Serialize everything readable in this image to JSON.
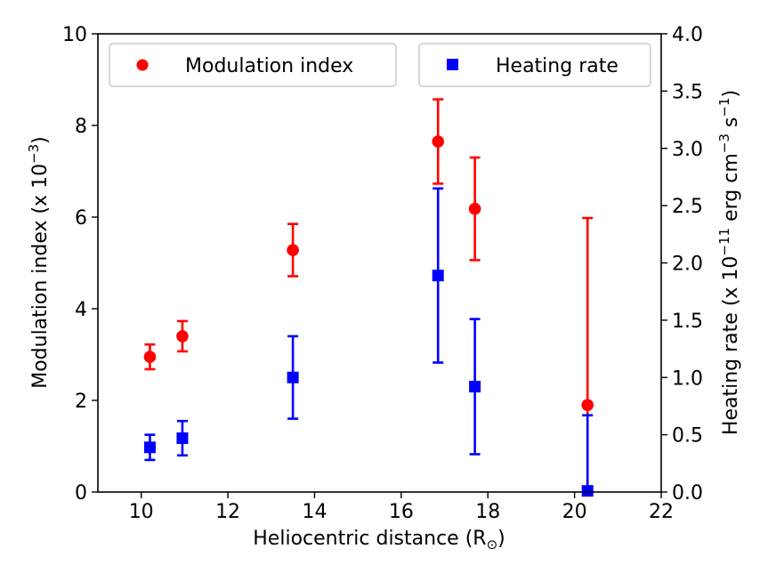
{
  "chart_data": {
    "type": "scatter",
    "title": "",
    "xlabel": "Heliocentric distance (R",
    "xlabel_sub": "⊙",
    "xlabel_close": ")",
    "ylabel_left": "Modulation index (x 10",
    "ylabel_left_exp": "−3",
    "ylabel_left_close": ")",
    "ylabel_right": "Heating rate (x 10",
    "ylabel_right_exp1": "−11",
    "ylabel_right_mid": " erg cm",
    "ylabel_right_exp2": "−3",
    "ylabel_right_mid2": " s",
    "ylabel_right_exp3": "−1",
    "ylabel_right_close": ")",
    "xlim": [
      9,
      22
    ],
    "ylim_left": [
      0,
      10
    ],
    "ylim_right": [
      0,
      4.0
    ],
    "x_ticks": [
      10,
      12,
      14,
      16,
      18,
      20,
      22
    ],
    "x_tick_labels": [
      "10",
      "12",
      "14",
      "16",
      "18",
      "20",
      "22"
    ],
    "y_left_ticks": [
      0,
      2,
      4,
      6,
      8,
      10
    ],
    "y_left_tick_labels": [
      "0",
      "2",
      "4",
      "6",
      "8",
      "10"
    ],
    "y_right_ticks": [
      0.0,
      0.5,
      1.0,
      1.5,
      2.0,
      2.5,
      3.0,
      3.5,
      4.0
    ],
    "y_right_tick_labels": [
      "0.0",
      "0.5",
      "1.0",
      "1.5",
      "2.0",
      "2.5",
      "3.0",
      "3.5",
      "4.0"
    ],
    "series": [
      {
        "name": "Modulation index",
        "axis": "left",
        "marker": "circle",
        "color": "#ff0000",
        "x": [
          10.2,
          10.95,
          13.5,
          16.85,
          17.7,
          20.3
        ],
        "y": [
          2.95,
          3.4,
          5.28,
          7.65,
          6.18,
          1.9
        ],
        "yerr": [
          0.27,
          0.33,
          0.57,
          0.92,
          1.12,
          4.08
        ]
      },
      {
        "name": "Heating rate",
        "axis": "right",
        "marker": "square",
        "color": "#0000ff",
        "x": [
          10.2,
          10.95,
          13.5,
          16.85,
          17.7,
          20.3
        ],
        "y": [
          0.39,
          0.47,
          1.0,
          1.89,
          0.92,
          0.01
        ],
        "yerr": [
          0.11,
          0.15,
          0.36,
          0.76,
          0.59,
          0.66
        ]
      }
    ]
  }
}
